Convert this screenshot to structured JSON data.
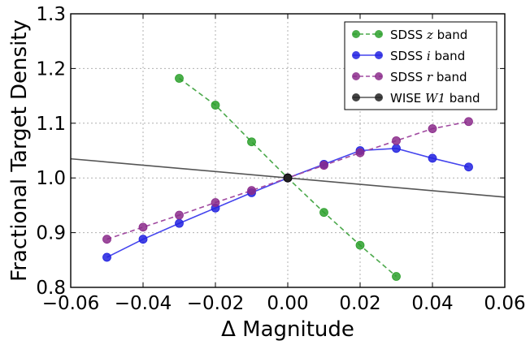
{
  "chart_data": {
    "type": "line",
    "title": "",
    "xlabel": "Δ Magnitude",
    "ylabel": "Fractional Target Density",
    "xlim": [
      -0.06,
      0.06
    ],
    "ylim": [
      0.8,
      1.3
    ],
    "xticks": [
      -0.06,
      -0.04,
      -0.02,
      0.0,
      0.02,
      0.04,
      0.06
    ],
    "xtick_labels": [
      "−0.06",
      "−0.04",
      "−0.02",
      "0.00",
      "0.02",
      "0.04",
      "0.06"
    ],
    "yticks": [
      0.8,
      0.9,
      1.0,
      1.1,
      1.2,
      1.3
    ],
    "ytick_labels": [
      "0.8",
      "0.9",
      "1.0",
      "1.1",
      "1.2",
      "1.3"
    ],
    "grid": true,
    "legend_position": "top-right",
    "series": [
      {
        "name": "SDSS z band",
        "legend_prefix": "SDSS ",
        "legend_math": "z",
        "legend_suffix": " band",
        "color": "#2ca02c",
        "line_color": "#4aa84a",
        "line_style": "dashed",
        "marker": "circle",
        "x": [
          -0.03,
          -0.02,
          -0.01,
          0.0,
          0.01,
          0.02,
          0.03
        ],
        "y": [
          1.182,
          1.133,
          1.066,
          1.0,
          0.937,
          0.877,
          0.82
        ]
      },
      {
        "name": "SDSS i band",
        "legend_prefix": "SDSS ",
        "legend_math": "i",
        "legend_suffix": " band",
        "color": "#2222e0",
        "line_color": "#4444ee",
        "line_style": "solid",
        "marker": "circle",
        "x": [
          -0.05,
          -0.04,
          -0.03,
          -0.02,
          -0.01,
          0.0,
          0.01,
          0.02,
          0.03,
          0.04,
          0.05
        ],
        "y": [
          0.855,
          0.888,
          0.917,
          0.945,
          0.973,
          1.0,
          1.025,
          1.05,
          1.054,
          1.036,
          1.02
        ]
      },
      {
        "name": "SDSS r band",
        "legend_prefix": "SDSS ",
        "legend_math": "r",
        "legend_suffix": " band",
        "color": "#8b2b8b",
        "line_color": "#a04aa0",
        "line_style": "dashed",
        "marker": "circle",
        "x": [
          -0.05,
          -0.04,
          -0.03,
          -0.02,
          -0.01,
          0.0,
          0.01,
          0.02,
          0.03,
          0.04,
          0.05
        ],
        "y": [
          0.888,
          0.91,
          0.932,
          0.955,
          0.977,
          1.0,
          1.023,
          1.046,
          1.068,
          1.09,
          1.103
        ]
      },
      {
        "name": "WISE W1 band",
        "legend_prefix": "WISE ",
        "legend_math": "W1",
        "legend_suffix": " band",
        "color": "#222222",
        "line_color": "#555555",
        "line_style": "solid",
        "marker": "none",
        "x": [
          -0.06,
          0.06
        ],
        "y": [
          1.035,
          0.965
        ],
        "point_x": [
          0.0
        ],
        "point_y": [
          1.0
        ]
      }
    ]
  }
}
